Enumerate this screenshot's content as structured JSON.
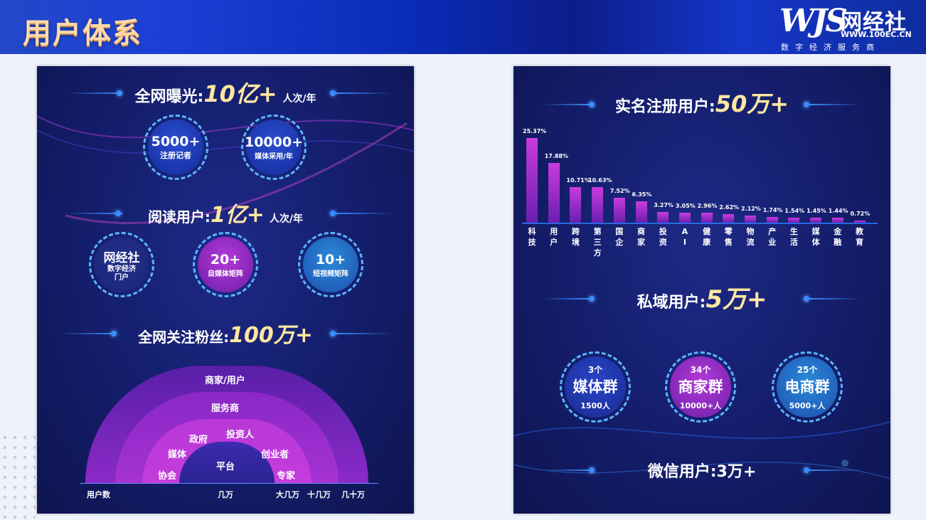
{
  "header": {
    "title": "用户体系"
  },
  "logo": {
    "mark": "WJS",
    "name": "网经社",
    "url": "WWW.100EC.CN",
    "tagline": "数字经济服务商"
  },
  "left": {
    "exposure": {
      "label": "全网曝光:",
      "value": "10亿+",
      "unit": "人次/年"
    },
    "exposure_circles": [
      {
        "number": "5000+",
        "caption": "注册记者"
      },
      {
        "number": "10000+",
        "caption": "媒体采用/年"
      }
    ],
    "readers": {
      "label": "阅读用户:",
      "value": "1亿+",
      "unit": "人次/年"
    },
    "reader_circles": [
      {
        "number": "网经社",
        "caption": "数字经济\n门户"
      },
      {
        "number": "20+",
        "caption": "自媒体矩阵"
      },
      {
        "number": "10+",
        "caption": "短视频矩阵"
      }
    ],
    "fans": {
      "label": "全网关注粉丝:",
      "value": "100万+"
    },
    "rings": {
      "labels": [
        "商家/用户",
        "服务商",
        "政府",
        "投资人",
        "媒体",
        "创业者",
        "平台",
        "协会",
        "专家"
      ],
      "axis": [
        "用户数",
        "几万",
        "大几万",
        "十几万",
        "几十万"
      ]
    }
  },
  "right": {
    "registered": {
      "label": "实名注册用户:",
      "value": "50万+"
    },
    "chart_data": {
      "type": "bar",
      "categories": [
        "科技",
        "用户",
        "跨境",
        "第三方",
        "国企",
        "商家",
        "投资",
        "AI",
        "健康",
        "零售",
        "物流",
        "产业",
        "生活",
        "媒体",
        "金融",
        "教育"
      ],
      "values": [
        25.37,
        17.88,
        10.71,
        10.63,
        7.52,
        6.35,
        3.27,
        3.05,
        2.96,
        2.62,
        2.12,
        1.74,
        1.54,
        1.45,
        1.44,
        0.72
      ],
      "value_labels": [
        "25.37%",
        "17.88%",
        "10.71%",
        "10.63%",
        "7.52%",
        "6.35%",
        "3.27%",
        "3.05%",
        "2.96%",
        "2.62%",
        "2.12%",
        "1.74%",
        "1.54%",
        "1.45%",
        "1.44%",
        "0.72%"
      ],
      "category_labels": [
        "科技",
        "用户",
        "跨境",
        "第三方",
        "国企",
        "商家",
        "投资",
        "A I",
        "健康",
        "零售",
        "物流",
        "产业",
        "生活",
        "媒体",
        "金融",
        "教育"
      ],
      "ylim": [
        0,
        26
      ],
      "colors": {
        "bar_top": "#c83cdc",
        "bar_bottom": "#6a1fb0"
      }
    },
    "private": {
      "label": "私域用户:",
      "value": "5万+"
    },
    "groups": [
      {
        "count": "3个",
        "name": "媒体群",
        "members": "1500人"
      },
      {
        "count": "34个",
        "name": "商家群",
        "members": "10000+人"
      },
      {
        "count": "25个",
        "name": "电商群",
        "members": "5000+人"
      }
    ],
    "wechat": {
      "label": "微信用户:",
      "value": "3万+"
    }
  }
}
